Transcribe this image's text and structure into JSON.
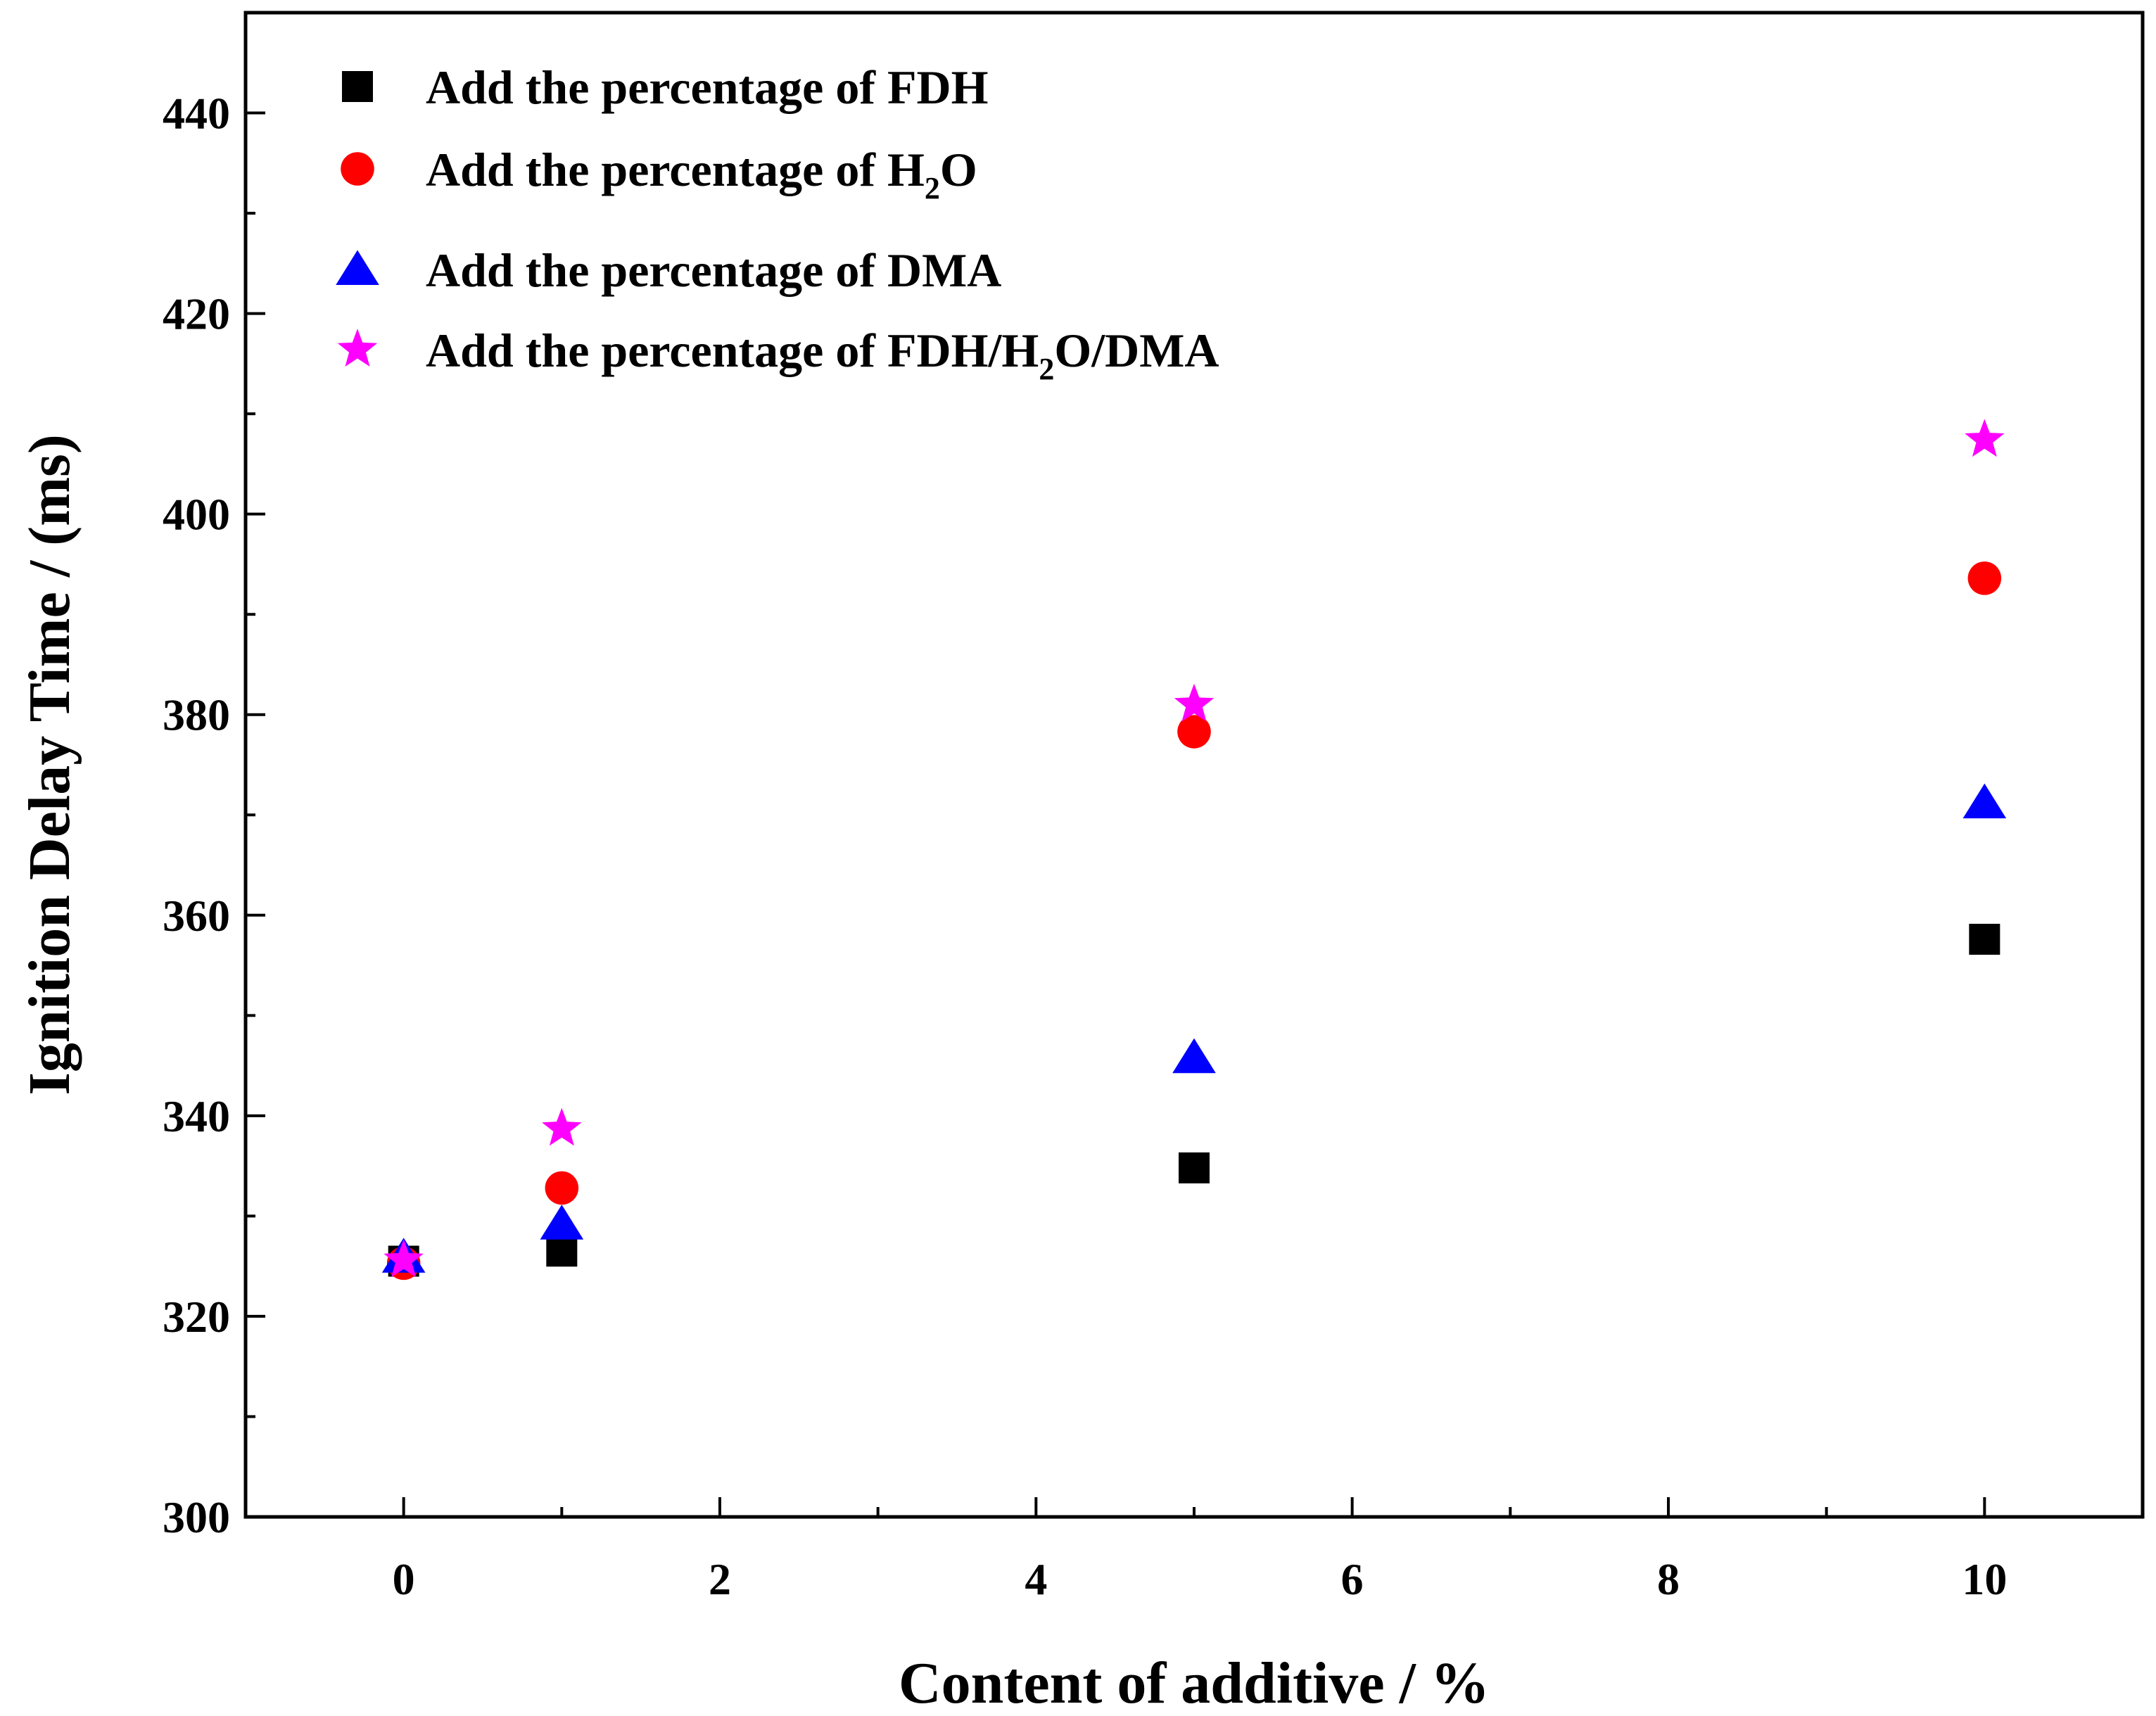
{
  "chart_data": {
    "type": "scatter",
    "title": "",
    "xlabel": "Content of additive / %",
    "ylabel": "Ignition Delay Time / (ms)",
    "xlim": [
      -1,
      11
    ],
    "ylim": [
      300,
      450
    ],
    "xticks": [
      0,
      2,
      4,
      6,
      8,
      10
    ],
    "yticks": [
      300,
      320,
      340,
      360,
      380,
      400,
      420,
      440
    ],
    "grid": false,
    "legend_position": "top-left",
    "series": [
      {
        "name": "Add the percentage of FDH",
        "label_parts": [
          {
            "text": "Add the percentage of FDH",
            "sub": false
          }
        ],
        "marker": "square",
        "color": "#000000",
        "x": [
          0,
          1,
          5,
          10
        ],
        "y": [
          325.5,
          326.5,
          334.8,
          357.6
        ]
      },
      {
        "name": "Add the percentage of H2O",
        "label_parts": [
          {
            "text": "Add the percentage of H",
            "sub": false
          },
          {
            "text": "2",
            "sub": true
          },
          {
            "text": "O",
            "sub": false
          }
        ],
        "marker": "circle",
        "color": "#ff0000",
        "x": [
          0,
          1,
          5,
          10
        ],
        "y": [
          325.3,
          332.8,
          378.3,
          393.6
        ]
      },
      {
        "name": "Add the percentage of DMA",
        "label_parts": [
          {
            "text": "Add the percentage of DMA",
            "sub": false
          }
        ],
        "marker": "triangle",
        "color": "#0000ff",
        "x": [
          0,
          1,
          5,
          10
        ],
        "y": [
          325.9,
          329.2,
          345.8,
          371.2
        ]
      },
      {
        "name": "Add the percentage of FDH/H2O/DMA",
        "label_parts": [
          {
            "text": "Add the percentage of FDH/H",
            "sub": false
          },
          {
            "text": "2",
            "sub": true
          },
          {
            "text": "O/DMA",
            "sub": false
          }
        ],
        "marker": "star",
        "color": "#ff00ff",
        "x": [
          0,
          1,
          5,
          10
        ],
        "y": [
          325.6,
          338.7,
          381.0,
          407.4
        ]
      }
    ]
  }
}
